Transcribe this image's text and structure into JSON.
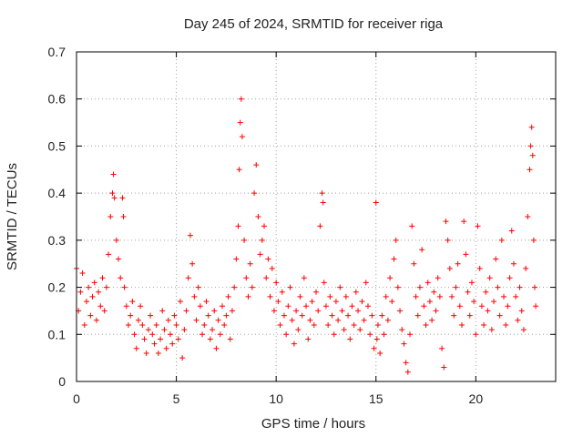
{
  "chart_data": {
    "type": "scatter",
    "title": "Day 245 of 2024, SRMTID for receiver riga",
    "xlabel": "GPS time / hours",
    "ylabel": "SRMTID / TECUs",
    "xlim": [
      0,
      24
    ],
    "ylim": [
      0,
      0.7
    ],
    "xticks": [
      0,
      5,
      10,
      15,
      20
    ],
    "xtick_labels": [
      "0",
      "5",
      "10",
      "15",
      "20"
    ],
    "yticks": [
      0,
      0.1,
      0.2,
      0.3,
      0.4,
      0.5,
      0.6,
      0.7
    ],
    "ytick_labels": [
      "0",
      "0.1",
      "0.2",
      "0.3",
      "0.4",
      "0.5",
      "0.6",
      "0.7"
    ],
    "grid": true,
    "marker": "plus",
    "color": "#ff0000",
    "series": [
      {
        "name": "riga",
        "points": [
          [
            0.0,
            0.24
          ],
          [
            0.1,
            0.15
          ],
          [
            0.2,
            0.19
          ],
          [
            0.3,
            0.23
          ],
          [
            0.4,
            0.12
          ],
          [
            0.5,
            0.17
          ],
          [
            0.6,
            0.2
          ],
          [
            0.7,
            0.14
          ],
          [
            0.8,
            0.18
          ],
          [
            0.9,
            0.21
          ],
          [
            1.0,
            0.13
          ],
          [
            1.1,
            0.19
          ],
          [
            1.2,
            0.16
          ],
          [
            1.3,
            0.22
          ],
          [
            1.4,
            0.15
          ],
          [
            1.5,
            0.2
          ],
          [
            1.6,
            0.27
          ],
          [
            1.7,
            0.35
          ],
          [
            1.8,
            0.4
          ],
          [
            1.85,
            0.44
          ],
          [
            1.9,
            0.39
          ],
          [
            2.0,
            0.3
          ],
          [
            2.1,
            0.26
          ],
          [
            2.2,
            0.22
          ],
          [
            2.3,
            0.39
          ],
          [
            2.35,
            0.35
          ],
          [
            2.4,
            0.2
          ],
          [
            2.5,
            0.16
          ],
          [
            2.6,
            0.12
          ],
          [
            2.7,
            0.14
          ],
          [
            2.8,
            0.17
          ],
          [
            2.9,
            0.1
          ],
          [
            3.0,
            0.07
          ],
          [
            3.1,
            0.13
          ],
          [
            3.2,
            0.16
          ],
          [
            3.3,
            0.12
          ],
          [
            3.4,
            0.09
          ],
          [
            3.5,
            0.06
          ],
          [
            3.6,
            0.11
          ],
          [
            3.7,
            0.14
          ],
          [
            3.8,
            0.1
          ],
          [
            3.9,
            0.08
          ],
          [
            4.0,
            0.12
          ],
          [
            4.1,
            0.06
          ],
          [
            4.2,
            0.09
          ],
          [
            4.3,
            0.15
          ],
          [
            4.4,
            0.11
          ],
          [
            4.5,
            0.07
          ],
          [
            4.6,
            0.13
          ],
          [
            4.7,
            0.1
          ],
          [
            4.8,
            0.08
          ],
          [
            4.9,
            0.14
          ],
          [
            5.0,
            0.12
          ],
          [
            5.1,
            0.09
          ],
          [
            5.2,
            0.17
          ],
          [
            5.3,
            0.05
          ],
          [
            5.4,
            0.11
          ],
          [
            5.5,
            0.15
          ],
          [
            5.6,
            0.22
          ],
          [
            5.7,
            0.31
          ],
          [
            5.8,
            0.25
          ],
          [
            5.9,
            0.18
          ],
          [
            6.0,
            0.13
          ],
          [
            6.1,
            0.2
          ],
          [
            6.2,
            0.16
          ],
          [
            6.3,
            0.1
          ],
          [
            6.4,
            0.12
          ],
          [
            6.5,
            0.17
          ],
          [
            6.6,
            0.14
          ],
          [
            6.7,
            0.09
          ],
          [
            6.8,
            0.11
          ],
          [
            6.9,
            0.15
          ],
          [
            7.0,
            0.07
          ],
          [
            7.1,
            0.13
          ],
          [
            7.2,
            0.1
          ],
          [
            7.3,
            0.16
          ],
          [
            7.4,
            0.12
          ],
          [
            7.5,
            0.14
          ],
          [
            7.6,
            0.18
          ],
          [
            7.7,
            0.09
          ],
          [
            7.8,
            0.15
          ],
          [
            7.9,
            0.2
          ],
          [
            8.0,
            0.26
          ],
          [
            8.1,
            0.33
          ],
          [
            8.15,
            0.45
          ],
          [
            8.2,
            0.55
          ],
          [
            8.25,
            0.6
          ],
          [
            8.3,
            0.52
          ],
          [
            8.4,
            0.3
          ],
          [
            8.5,
            0.22
          ],
          [
            8.6,
            0.18
          ],
          [
            8.7,
            0.25
          ],
          [
            8.8,
            0.2
          ],
          [
            8.9,
            0.4
          ],
          [
            9.0,
            0.46
          ],
          [
            9.1,
            0.35
          ],
          [
            9.2,
            0.27
          ],
          [
            9.3,
            0.3
          ],
          [
            9.4,
            0.33
          ],
          [
            9.5,
            0.22
          ],
          [
            9.6,
            0.26
          ],
          [
            9.7,
            0.18
          ],
          [
            9.8,
            0.24
          ],
          [
            9.9,
            0.15
          ],
          [
            10.0,
            0.21
          ],
          [
            10.1,
            0.17
          ],
          [
            10.2,
            0.12
          ],
          [
            10.3,
            0.19
          ],
          [
            10.4,
            0.14
          ],
          [
            10.5,
            0.1
          ],
          [
            10.6,
            0.16
          ],
          [
            10.7,
            0.2
          ],
          [
            10.8,
            0.13
          ],
          [
            10.9,
            0.08
          ],
          [
            11.0,
            0.15
          ],
          [
            11.1,
            0.11
          ],
          [
            11.2,
            0.18
          ],
          [
            11.3,
            0.14
          ],
          [
            11.4,
            0.22
          ],
          [
            11.5,
            0.16
          ],
          [
            11.6,
            0.09
          ],
          [
            11.7,
            0.13
          ],
          [
            11.8,
            0.17
          ],
          [
            11.9,
            0.12
          ],
          [
            12.0,
            0.19
          ],
          [
            12.1,
            0.15
          ],
          [
            12.2,
            0.33
          ],
          [
            12.3,
            0.4
          ],
          [
            12.35,
            0.38
          ],
          [
            12.4,
            0.21
          ],
          [
            12.5,
            0.16
          ],
          [
            12.6,
            0.12
          ],
          [
            12.7,
            0.18
          ],
          [
            12.8,
            0.14
          ],
          [
            12.9,
            0.1
          ],
          [
            13.0,
            0.17
          ],
          [
            13.1,
            0.13
          ],
          [
            13.2,
            0.2
          ],
          [
            13.3,
            0.15
          ],
          [
            13.4,
            0.11
          ],
          [
            13.5,
            0.18
          ],
          [
            13.6,
            0.14
          ],
          [
            13.7,
            0.09
          ],
          [
            13.8,
            0.16
          ],
          [
            13.9,
            0.12
          ],
          [
            14.0,
            0.19
          ],
          [
            14.1,
            0.15
          ],
          [
            14.2,
            0.11
          ],
          [
            14.3,
            0.17
          ],
          [
            14.4,
            0.13
          ],
          [
            14.5,
            0.21
          ],
          [
            14.6,
            0.16
          ],
          [
            14.7,
            0.1
          ],
          [
            14.8,
            0.14
          ],
          [
            14.9,
            0.07
          ],
          [
            15.0,
            0.38
          ],
          [
            15.05,
            0.09
          ],
          [
            15.1,
            0.12
          ],
          [
            15.2,
            0.06
          ],
          [
            15.3,
            0.14
          ],
          [
            15.4,
            0.1
          ],
          [
            15.5,
            0.18
          ],
          [
            15.6,
            0.13
          ],
          [
            15.7,
            0.22
          ],
          [
            15.8,
            0.17
          ],
          [
            15.9,
            0.26
          ],
          [
            16.0,
            0.3
          ],
          [
            16.1,
            0.2
          ],
          [
            16.2,
            0.15
          ],
          [
            16.3,
            0.11
          ],
          [
            16.4,
            0.08
          ],
          [
            16.5,
            0.04
          ],
          [
            16.6,
            0.02
          ],
          [
            16.7,
            0.1
          ],
          [
            16.8,
            0.33
          ],
          [
            16.9,
            0.25
          ],
          [
            17.0,
            0.18
          ],
          [
            17.1,
            0.14
          ],
          [
            17.2,
            0.2
          ],
          [
            17.3,
            0.28
          ],
          [
            17.4,
            0.16
          ],
          [
            17.5,
            0.12
          ],
          [
            17.6,
            0.21
          ],
          [
            17.7,
            0.17
          ],
          [
            17.8,
            0.13
          ],
          [
            17.9,
            0.19
          ],
          [
            18.0,
            0.15
          ],
          [
            18.1,
            0.22
          ],
          [
            18.2,
            0.18
          ],
          [
            18.3,
            0.07
          ],
          [
            18.4,
            0.03
          ],
          [
            18.5,
            0.34
          ],
          [
            18.6,
            0.3
          ],
          [
            18.7,
            0.24
          ],
          [
            18.8,
            0.18
          ],
          [
            18.9,
            0.14
          ],
          [
            19.0,
            0.2
          ],
          [
            19.1,
            0.25
          ],
          [
            19.2,
            0.16
          ],
          [
            19.3,
            0.12
          ],
          [
            19.4,
            0.34
          ],
          [
            19.5,
            0.27
          ],
          [
            19.6,
            0.19
          ],
          [
            19.7,
            0.14
          ],
          [
            19.8,
            0.21
          ],
          [
            19.9,
            0.17
          ],
          [
            20.0,
            0.1
          ],
          [
            20.1,
            0.33
          ],
          [
            20.2,
            0.24
          ],
          [
            20.3,
            0.16
          ],
          [
            20.4,
            0.12
          ],
          [
            20.5,
            0.19
          ],
          [
            20.6,
            0.15
          ],
          [
            20.7,
            0.22
          ],
          [
            20.8,
            0.11
          ],
          [
            20.9,
            0.17
          ],
          [
            21.0,
            0.26
          ],
          [
            21.1,
            0.2
          ],
          [
            21.2,
            0.14
          ],
          [
            21.3,
            0.3
          ],
          [
            21.4,
            0.18
          ],
          [
            21.5,
            0.12
          ],
          [
            21.6,
            0.16
          ],
          [
            21.7,
            0.22
          ],
          [
            21.8,
            0.32
          ],
          [
            21.9,
            0.25
          ],
          [
            22.0,
            0.18
          ],
          [
            22.1,
            0.13
          ],
          [
            22.2,
            0.2
          ],
          [
            22.3,
            0.15
          ],
          [
            22.4,
            0.11
          ],
          [
            22.5,
            0.24
          ],
          [
            22.6,
            0.35
          ],
          [
            22.7,
            0.45
          ],
          [
            22.75,
            0.5
          ],
          [
            22.8,
            0.54
          ],
          [
            22.85,
            0.48
          ],
          [
            22.9,
            0.3
          ],
          [
            22.95,
            0.2
          ],
          [
            23.0,
            0.16
          ]
        ]
      }
    ]
  }
}
